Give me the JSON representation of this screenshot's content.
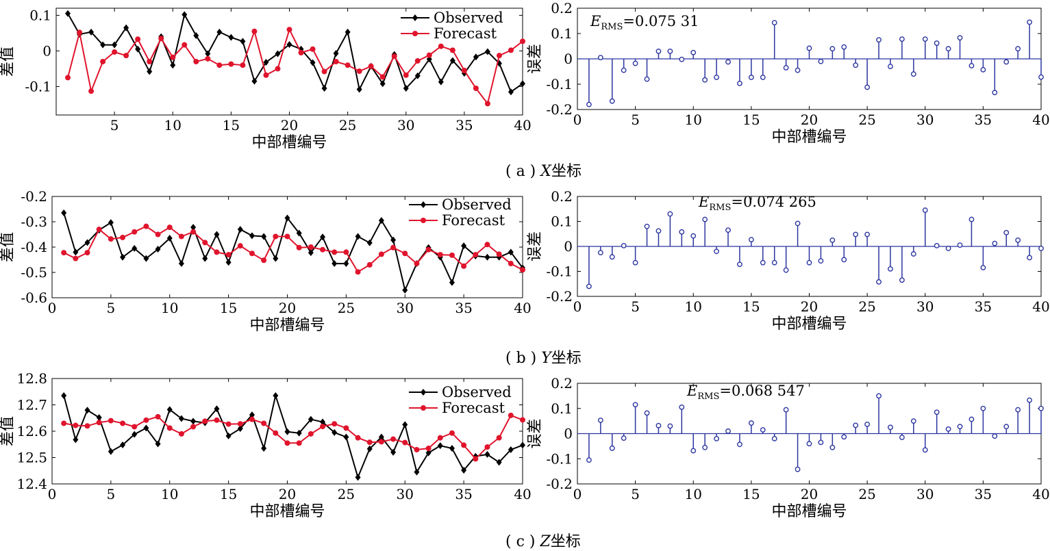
{
  "xlabel": "中部槽编号",
  "captions": [
    {
      "prefix": "( a ) ",
      "axis": "X",
      "suffix": "坐标"
    },
    {
      "prefix": "( b ) ",
      "axis": "Y",
      "suffix": "坐标"
    },
    {
      "prefix": "( c ) ",
      "axis": "Z",
      "suffix": "坐标"
    }
  ],
  "legend": [
    "Observed",
    "Forecast"
  ],
  "colors": {
    "observed": "#000000",
    "forecast": "#e0142c",
    "stem": "#2b35a0",
    "axis": "#000000"
  },
  "chart_data": [
    {
      "panel": "a-left",
      "type": "line",
      "ylabel": "差值",
      "xlabel": "中部槽编号",
      "xlim": [
        0,
        40
      ],
      "ylim": [
        -0.18,
        0.12
      ],
      "xticks": [
        5,
        10,
        15,
        20,
        25,
        30,
        35,
        40
      ],
      "yticks": [
        0.1,
        0,
        -0.1
      ],
      "ytick_labels": [
        "0.1",
        "0",
        "-0.1"
      ],
      "legend_position": "top-right",
      "x": [
        1,
        2,
        3,
        4,
        5,
        6,
        7,
        8,
        9,
        10,
        11,
        12,
        13,
        14,
        15,
        16,
        17,
        18,
        19,
        20,
        21,
        22,
        23,
        24,
        25,
        26,
        27,
        28,
        29,
        30,
        31,
        32,
        33,
        34,
        35,
        36,
        37,
        38,
        39,
        40
      ],
      "series": [
        {
          "name": "Observed",
          "values": [
            0.105,
            0.047,
            0.053,
            0.017,
            0.017,
            0.065,
            0.005,
            -0.058,
            0.04,
            -0.04,
            0.102,
            0.043,
            -0.008,
            0.053,
            0.038,
            0.027,
            -0.085,
            -0.032,
            -0.008,
            0.018,
            0.005,
            -0.033,
            -0.105,
            -0.007,
            0.053,
            -0.108,
            -0.043,
            -0.092,
            -0.01,
            -0.105,
            -0.07,
            -0.023,
            -0.087,
            -0.027,
            -0.063,
            -0.017,
            -0.002,
            -0.035,
            -0.115,
            -0.092
          ]
        },
        {
          "name": "Forecast",
          "values": [
            -0.075,
            0.052,
            -0.113,
            -0.03,
            -0.003,
            -0.013,
            0.033,
            -0.03,
            0.035,
            -0.018,
            0.017,
            -0.03,
            -0.022,
            -0.04,
            -0.037,
            -0.04,
            0.055,
            -0.068,
            -0.05,
            0.06,
            -0.005,
            0.005,
            -0.058,
            -0.03,
            -0.04,
            -0.057,
            -0.043,
            -0.073,
            -0.015,
            -0.068,
            -0.028,
            -0.012,
            0.013,
            0.002,
            -0.055,
            -0.105,
            -0.148,
            -0.013,
            0.002,
            0.027
          ]
        }
      ]
    },
    {
      "panel": "a-right",
      "type": "stem",
      "ylabel": "误差",
      "xlabel": "中部槽编号",
      "annotation": {
        "symbol": "E",
        "subscript": "RMS",
        "value": "=0.075 31"
      },
      "xlim": [
        0,
        40
      ],
      "ylim": [
        -0.2,
        0.2
      ],
      "xticks": [
        0,
        5,
        10,
        15,
        20,
        25,
        30,
        35,
        40
      ],
      "yticks": [
        0.2,
        0.1,
        0,
        -0.1,
        -0.2
      ],
      "ytick_labels": [
        "0.2",
        "0.1",
        "0",
        "-0.1",
        "-0.2"
      ],
      "x": [
        1,
        2,
        3,
        4,
        5,
        6,
        7,
        8,
        9,
        10,
        11,
        12,
        13,
        14,
        15,
        16,
        17,
        18,
        19,
        20,
        21,
        22,
        23,
        24,
        25,
        26,
        27,
        28,
        29,
        30,
        31,
        32,
        33,
        34,
        35,
        36,
        37,
        38,
        39,
        40
      ],
      "values": [
        -0.18,
        0.005,
        -0.167,
        -0.045,
        -0.018,
        -0.08,
        0.03,
        0.03,
        -0.002,
        0.025,
        -0.083,
        -0.073,
        -0.012,
        -0.097,
        -0.073,
        -0.073,
        0.143,
        -0.035,
        -0.045,
        0.042,
        -0.01,
        0.04,
        0.047,
        -0.025,
        -0.112,
        0.075,
        -0.03,
        0.078,
        -0.06,
        0.078,
        0.062,
        0.04,
        0.083,
        -0.027,
        -0.043,
        -0.133,
        -0.012,
        0.04,
        0.145,
        -0.072
      ]
    },
    {
      "panel": "b-left",
      "type": "line",
      "ylabel": "差值",
      "xlabel": "中部槽编号",
      "xlim": [
        0,
        40
      ],
      "ylim": [
        -0.6,
        -0.2
      ],
      "xticks": [
        0,
        5,
        10,
        15,
        20,
        25,
        30,
        35,
        40
      ],
      "yticks": [
        -0.2,
        -0.3,
        -0.4,
        -0.5,
        -0.6
      ],
      "ytick_labels": [
        "-0.2",
        "-0.3",
        "-0.4",
        "-0.5",
        "-0.6"
      ],
      "legend_position": "top-right",
      "x": [
        1,
        2,
        3,
        4,
        5,
        6,
        7,
        8,
        9,
        10,
        11,
        12,
        13,
        14,
        15,
        16,
        17,
        18,
        19,
        20,
        21,
        22,
        23,
        24,
        25,
        26,
        27,
        28,
        29,
        30,
        31,
        32,
        33,
        34,
        35,
        36,
        37,
        38,
        39,
        40
      ],
      "series": [
        {
          "name": "Observed",
          "values": [
            -0.265,
            -0.42,
            -0.382,
            -0.333,
            -0.303,
            -0.44,
            -0.405,
            -0.445,
            -0.408,
            -0.365,
            -0.465,
            -0.322,
            -0.445,
            -0.35,
            -0.46,
            -0.33,
            -0.355,
            -0.358,
            -0.445,
            -0.285,
            -0.345,
            -0.422,
            -0.36,
            -0.465,
            -0.465,
            -0.358,
            -0.383,
            -0.295,
            -0.372,
            -0.57,
            -0.465,
            -0.402,
            -0.44,
            -0.54,
            -0.395,
            -0.435,
            -0.44,
            -0.44,
            -0.42,
            -0.482
          ]
        },
        {
          "name": "Forecast",
          "values": [
            -0.422,
            -0.445,
            -0.422,
            -0.33,
            -0.368,
            -0.362,
            -0.34,
            -0.318,
            -0.35,
            -0.322,
            -0.358,
            -0.34,
            -0.382,
            -0.42,
            -0.43,
            -0.395,
            -0.425,
            -0.452,
            -0.358,
            -0.358,
            -0.402,
            -0.4,
            -0.41,
            -0.42,
            -0.42,
            -0.498,
            -0.47,
            -0.428,
            -0.402,
            -0.425,
            -0.465,
            -0.41,
            -0.43,
            -0.432,
            -0.475,
            -0.43,
            -0.39,
            -0.428,
            -0.465,
            -0.49
          ]
        }
      ]
    },
    {
      "panel": "b-right",
      "type": "stem",
      "ylabel": "误差",
      "xlabel": "中部槽编号",
      "annotation": {
        "symbol": "E",
        "subscript": "RMS",
        "value": "=0.074 265"
      },
      "xlim": [
        0,
        40
      ],
      "ylim": [
        -0.2,
        0.2
      ],
      "xticks": [
        0,
        5,
        10,
        15,
        20,
        25,
        30,
        35,
        40
      ],
      "yticks": [
        0.2,
        0.1,
        0,
        -0.1,
        -0.2
      ],
      "ytick_labels": [
        "0.2",
        "0.1",
        "0",
        "-0.1",
        "-0.2"
      ],
      "x": [
        1,
        2,
        3,
        4,
        5,
        6,
        7,
        8,
        9,
        10,
        11,
        12,
        13,
        14,
        15,
        16,
        17,
        18,
        19,
        20,
        21,
        22,
        23,
        24,
        25,
        26,
        27,
        28,
        29,
        30,
        31,
        32,
        33,
        34,
        35,
        36,
        37,
        38,
        39,
        40
      ],
      "values": [
        -0.16,
        -0.025,
        -0.042,
        0.003,
        -0.065,
        0.08,
        0.062,
        0.13,
        0.058,
        0.042,
        0.108,
        -0.02,
        0.065,
        -0.072,
        0.027,
        -0.065,
        -0.065,
        -0.095,
        0.092,
        -0.065,
        -0.058,
        0.025,
        -0.053,
        0.048,
        0.048,
        -0.142,
        -0.09,
        -0.135,
        -0.03,
        0.145,
        0.003,
        -0.008,
        0.005,
        0.108,
        -0.085,
        0.012,
        0.055,
        0.025,
        -0.045,
        -0.008
      ]
    },
    {
      "panel": "c-left",
      "type": "line",
      "ylabel": "差值",
      "xlabel": "中部槽编号",
      "xlim": [
        0,
        40
      ],
      "ylim": [
        12.4,
        12.8
      ],
      "xticks": [
        0,
        5,
        10,
        15,
        20,
        25,
        30,
        35,
        40
      ],
      "yticks": [
        12.8,
        12.7,
        12.6,
        12.5,
        12.4
      ],
      "ytick_labels": [
        "12.8",
        "12.7",
        "12.6",
        "12.5",
        "12.4"
      ],
      "legend_position": "top-right",
      "x": [
        1,
        2,
        3,
        4,
        5,
        6,
        7,
        8,
        9,
        10,
        11,
        12,
        13,
        14,
        15,
        16,
        17,
        18,
        19,
        20,
        21,
        22,
        23,
        24,
        25,
        26,
        27,
        28,
        29,
        30,
        31,
        32,
        33,
        34,
        35,
        36,
        37,
        38,
        39,
        40
      ],
      "series": [
        {
          "name": "Observed",
          "values": [
            12.735,
            12.568,
            12.68,
            12.652,
            12.523,
            12.548,
            12.588,
            12.612,
            12.552,
            12.682,
            12.648,
            12.638,
            12.632,
            12.685,
            12.582,
            12.61,
            12.662,
            12.535,
            12.735,
            12.598,
            12.593,
            12.645,
            12.635,
            12.595,
            12.578,
            12.425,
            12.533,
            12.578,
            12.52,
            12.625,
            12.445,
            12.518,
            12.545,
            12.535,
            12.452,
            12.505,
            12.512,
            12.482,
            12.53,
            12.547
          ]
        },
        {
          "name": "Forecast",
          "values": [
            12.63,
            12.622,
            12.62,
            12.633,
            12.64,
            12.63,
            12.617,
            12.642,
            12.655,
            12.612,
            12.59,
            12.617,
            12.638,
            12.642,
            12.627,
            12.628,
            12.645,
            12.63,
            12.593,
            12.555,
            12.555,
            12.59,
            12.618,
            12.628,
            12.612,
            12.575,
            12.558,
            12.56,
            12.57,
            12.557,
            12.53,
            12.535,
            12.575,
            12.593,
            12.547,
            12.495,
            12.54,
            12.575,
            12.66,
            12.643
          ]
        }
      ]
    },
    {
      "panel": "c-right",
      "type": "stem",
      "ylabel": "误差",
      "xlabel": "中部槽编号",
      "annotation": {
        "symbol": "E",
        "subscript": "RMS",
        "value": "=0.068 547"
      },
      "xlim": [
        0,
        40
      ],
      "ylim": [
        -0.2,
        0.2
      ],
      "xticks": [
        0,
        5,
        10,
        15,
        20,
        25,
        30,
        35,
        40
      ],
      "yticks": [
        0.2,
        0.1,
        0,
        -0.1,
        -0.2
      ],
      "ytick_labels": [
        "0.2",
        "0.1",
        "0",
        "-0.1",
        "-0.2"
      ],
      "x": [
        1,
        2,
        3,
        4,
        5,
        6,
        7,
        8,
        9,
        10,
        11,
        12,
        13,
        14,
        15,
        16,
        17,
        18,
        19,
        20,
        21,
        22,
        23,
        24,
        25,
        26,
        27,
        28,
        29,
        30,
        31,
        32,
        33,
        34,
        35,
        36,
        37,
        38,
        39,
        40
      ],
      "values": [
        -0.105,
        0.053,
        -0.058,
        -0.018,
        0.115,
        0.082,
        0.032,
        0.03,
        0.105,
        -0.068,
        -0.055,
        -0.02,
        0.01,
        -0.043,
        0.042,
        0.015,
        -0.02,
        0.095,
        -0.142,
        -0.04,
        -0.035,
        -0.055,
        -0.013,
        0.033,
        0.037,
        0.15,
        0.025,
        -0.015,
        0.05,
        -0.065,
        0.085,
        0.018,
        0.028,
        0.057,
        0.1,
        -0.01,
        0.028,
        0.095,
        0.133,
        0.1
      ]
    }
  ]
}
